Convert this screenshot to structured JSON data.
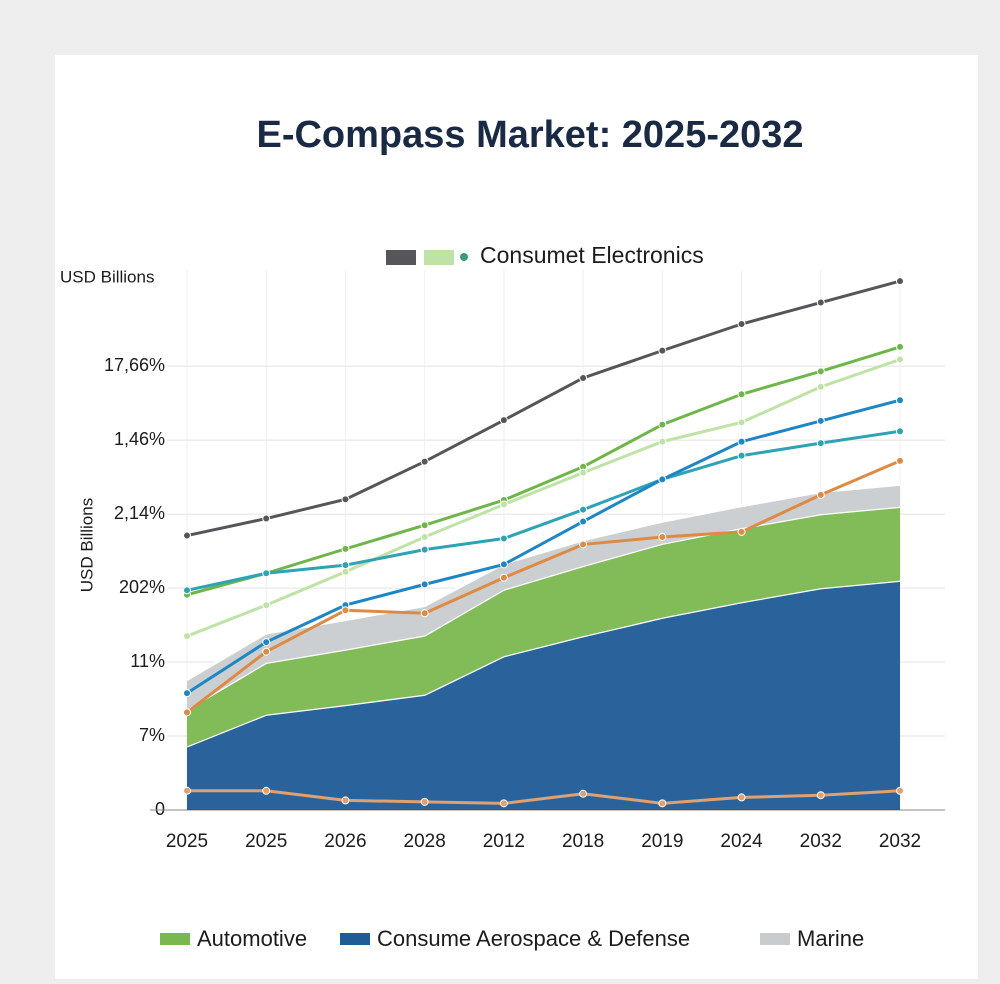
{
  "chart_data": {
    "type": "stacked-area-line",
    "title": "E-Compass Market: 2025-2032",
    "y_unit": "USD Billions",
    "y_label": "USD Billions",
    "categories": [
      "2025",
      "2025",
      "2026",
      "2028",
      "2012",
      "2018",
      "2019",
      "2024",
      "2032",
      "2032"
    ],
    "ylim": [
      0,
      7.3
    ],
    "yticks": [
      {
        "value": 0,
        "label": "0"
      },
      {
        "value": 1,
        "label": "7%"
      },
      {
        "value": 2,
        "label": "11%"
      },
      {
        "value": 3,
        "label": "202%"
      },
      {
        "value": 4,
        "label": "2,14%"
      },
      {
        "value": 5,
        "label": "1,46%"
      },
      {
        "value": 6,
        "label": "17,66%"
      }
    ],
    "grid": true,
    "series": [
      {
        "name": "Consume Aerospace & Defense",
        "color": "#1f5b96",
        "values": [
          0.86,
          1.29,
          1.42,
          1.56,
          2.08,
          2.35,
          2.6,
          2.81,
          3.0,
          3.1
        ]
      },
      {
        "name": "Automotive",
        "color": "#7ab84f",
        "values": [
          0.5,
          0.7,
          0.75,
          0.8,
          0.9,
          0.95,
          1.0,
          1.0,
          1.0,
          1.0
        ]
      },
      {
        "name": "Marine",
        "color": "#c9cccf",
        "values": [
          0.4,
          0.4,
          0.4,
          0.4,
          0.35,
          0.35,
          0.3,
          0.3,
          0.3,
          0.3
        ]
      }
    ],
    "lines": [
      {
        "name": "Consumet Electronics",
        "color": "#555659",
        "values": [
          3.71,
          3.94,
          4.2,
          4.71,
          5.27,
          5.84,
          6.21,
          6.57,
          6.86,
          7.15
        ]
      },
      {
        "color": "#6fb64a",
        "values": [
          2.91,
          3.2,
          3.53,
          3.85,
          4.19,
          4.64,
          5.21,
          5.62,
          5.93,
          6.26
        ]
      },
      {
        "color": "#bfe3a6",
        "values": [
          2.35,
          2.77,
          3.22,
          3.69,
          4.13,
          4.56,
          4.98,
          5.24,
          5.72,
          6.09
        ]
      },
      {
        "color": "#2ea3b5",
        "values": [
          2.97,
          3.2,
          3.31,
          3.52,
          3.67,
          4.06,
          4.47,
          4.79,
          4.96,
          5.12
        ]
      },
      {
        "color": "#1f86c4",
        "values": [
          1.58,
          2.27,
          2.77,
          3.05,
          3.32,
          3.9,
          4.47,
          4.98,
          5.26,
          5.54
        ]
      },
      {
        "color": "#dd8a45",
        "values": [
          1.32,
          2.14,
          2.7,
          2.66,
          3.14,
          3.59,
          3.69,
          3.76,
          4.26,
          4.72
        ]
      },
      {
        "color": "#e0a070",
        "values": [
          0.26,
          0.26,
          0.13,
          0.11,
          0.09,
          0.22,
          0.09,
          0.17,
          0.2,
          0.26
        ]
      }
    ]
  }
}
